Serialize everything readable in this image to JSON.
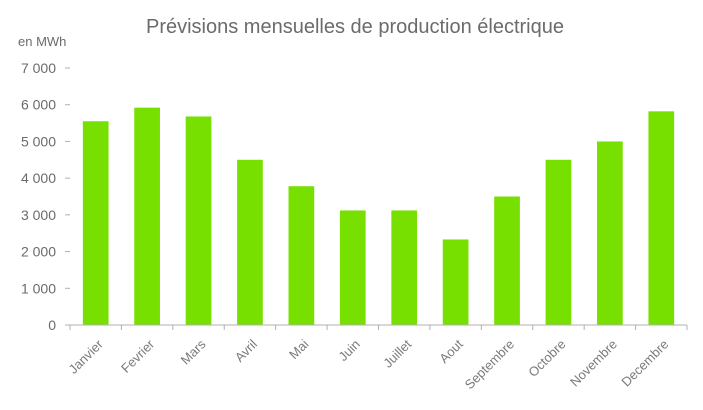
{
  "chart_data": {
    "type": "bar",
    "title": "Prévisions mensuelles de production électrique",
    "ylabel": "en MWh",
    "xlabel": "",
    "categories": [
      "Janvier",
      "Fevrier",
      "Mars",
      "Avril",
      "Mai",
      "Juin",
      "Juillet",
      "Aout",
      "Septembre",
      "Octobre",
      "Novembre",
      "Decembre"
    ],
    "values": [
      5550,
      5920,
      5680,
      4500,
      3780,
      3120,
      3120,
      2330,
      3500,
      4500,
      5000,
      5820
    ],
    "ylim": [
      0,
      7000
    ],
    "yticks": [
      0,
      1000,
      2000,
      3000,
      4000,
      5000,
      6000,
      7000
    ],
    "ytick_labels": [
      "0",
      "1 000",
      "2 000",
      "3 000",
      "4 000",
      "5 000",
      "6 000",
      "7 000"
    ],
    "grid": false,
    "legend": "none",
    "colors": {
      "bar": "#77e000",
      "axis": "#b0b0b0",
      "text": "#6b6b6b"
    }
  }
}
